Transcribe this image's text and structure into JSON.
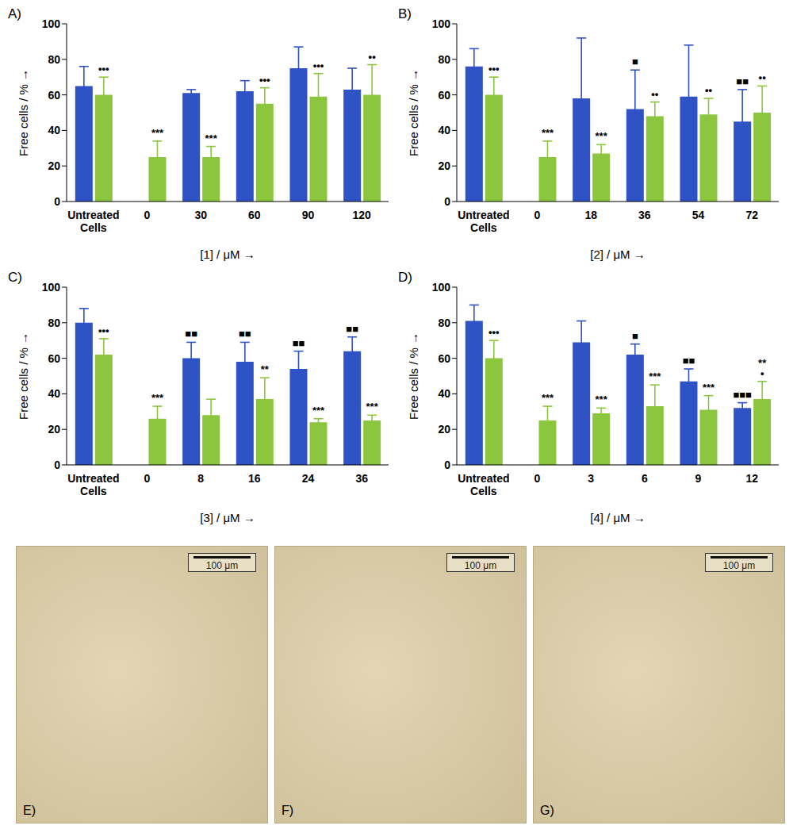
{
  "chart_data": [
    {
      "type": "bar",
      "title": "A)",
      "x_label": "[1] / μM →",
      "y_label": "Free cells / % →",
      "categories": [
        "Untreated Cells",
        "0",
        "30",
        "60",
        "90",
        "120"
      ],
      "ylim": [
        0,
        100
      ],
      "yticks": [
        0,
        20,
        40,
        60,
        80,
        100
      ],
      "grid": false,
      "series": [
        {
          "color": "#2f52c4",
          "values": [
            65,
            null,
            61,
            62,
            75,
            63
          ],
          "errors": [
            11,
            null,
            2,
            6,
            12,
            12
          ],
          "annotations": [
            null,
            null,
            null,
            null,
            null,
            null
          ]
        },
        {
          "color": "#8cc63f",
          "values": [
            60,
            25,
            25,
            55,
            59,
            60
          ],
          "errors": [
            10,
            9,
            6,
            9,
            13,
            17
          ],
          "annotations": [
            "•••",
            "***",
            "***",
            "•••",
            "•••",
            "••"
          ]
        }
      ]
    },
    {
      "type": "bar",
      "title": "B)",
      "x_label": "[2] / μM →",
      "y_label": "Free cells / % →",
      "categories": [
        "Untreated Cells",
        "0",
        "18",
        "36",
        "54",
        "72"
      ],
      "ylim": [
        0,
        100
      ],
      "yticks": [
        0,
        20,
        40,
        60,
        80,
        100
      ],
      "grid": false,
      "series": [
        {
          "color": "#2f52c4",
          "values": [
            76,
            null,
            58,
            52,
            59,
            45
          ],
          "errors": [
            10,
            null,
            34,
            22,
            29,
            18
          ],
          "annotations": [
            null,
            null,
            null,
            "■",
            null,
            "■■"
          ]
        },
        {
          "color": "#8cc63f",
          "values": [
            60,
            25,
            27,
            48,
            49,
            50
          ],
          "errors": [
            10,
            9,
            5,
            8,
            9,
            15
          ],
          "annotations": [
            "•••",
            "***",
            "***",
            "••",
            "••",
            "••"
          ]
        }
      ]
    },
    {
      "type": "bar",
      "title": "C)",
      "x_label": "[3] / μM →",
      "y_label": "Free cells / % →",
      "categories": [
        "Untreated Cells",
        "0",
        "8",
        "16",
        "24",
        "36"
      ],
      "ylim": [
        0,
        100
      ],
      "yticks": [
        0,
        20,
        40,
        60,
        80,
        100
      ],
      "grid": false,
      "series": [
        {
          "color": "#2f52c4",
          "values": [
            80,
            null,
            60,
            58,
            54,
            64
          ],
          "errors": [
            8,
            null,
            9,
            11,
            10,
            8
          ],
          "annotations": [
            null,
            null,
            "■■",
            "■■",
            "■■",
            "■■"
          ]
        },
        {
          "color": "#8cc63f",
          "values": [
            62,
            26,
            28,
            37,
            24,
            25
          ],
          "errors": [
            9,
            7,
            9,
            12,
            2,
            3
          ],
          "annotations": [
            "•••",
            "***",
            null,
            "**",
            "***",
            "***"
          ]
        }
      ]
    },
    {
      "type": "bar",
      "title": "D)",
      "x_label": "[4] / μM →",
      "y_label": "Free cells / % →",
      "categories": [
        "Untreated Cells",
        "0",
        "3",
        "6",
        "9",
        "12"
      ],
      "ylim": [
        0,
        100
      ],
      "yticks": [
        0,
        20,
        40,
        60,
        80,
        100
      ],
      "grid": false,
      "series": [
        {
          "color": "#2f52c4",
          "values": [
            81,
            null,
            69,
            62,
            47,
            32
          ],
          "errors": [
            9,
            null,
            12,
            6,
            7,
            3
          ],
          "annotations": [
            null,
            null,
            null,
            "■",
            "■■",
            "■■■"
          ]
        },
        {
          "color": "#8cc63f",
          "values": [
            60,
            25,
            29,
            33,
            31,
            37
          ],
          "errors": [
            10,
            8,
            3,
            12,
            8,
            10
          ],
          "annotations": [
            "•••",
            "***",
            "***",
            "***",
            "***",
            "**\n•"
          ]
        }
      ]
    }
  ],
  "images": [
    {
      "label": "E)",
      "scale_bar": "100 μm"
    },
    {
      "label": "F)",
      "scale_bar": "100 μm"
    },
    {
      "label": "G)",
      "scale_bar": "100 μm"
    }
  ]
}
